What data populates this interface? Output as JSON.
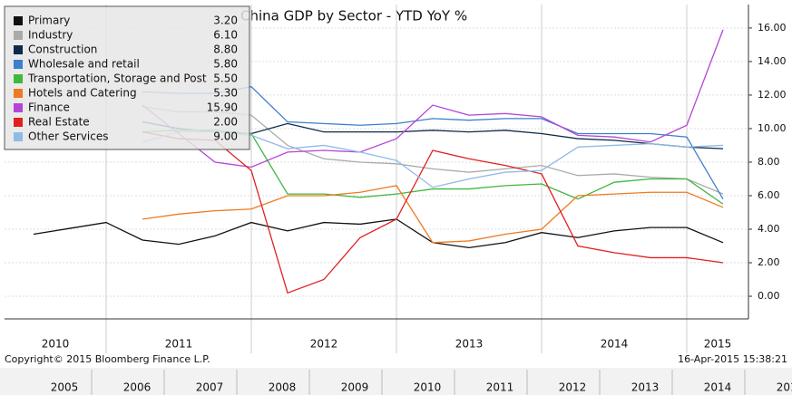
{
  "chart_data": {
    "type": "line",
    "title": "China GDP by Sector - YTD YoY %",
    "categories": [
      null,
      null,
      null,
      null,
      null,
      null,
      null,
      null,
      null,
      null,
      null,
      null,
      null,
      null,
      null,
      null,
      null,
      null,
      null,
      null
    ],
    "xbands": [
      "2010",
      "2011",
      "2012",
      "2013",
      "2014",
      "2015"
    ],
    "ylim": [
      -1.35,
      17.4
    ],
    "yticks": [
      {
        "value": 0,
        "label": "0.00"
      },
      {
        "value": 2,
        "label": "2.00"
      },
      {
        "value": 4,
        "label": "4.00"
      },
      {
        "value": 6,
        "label": "6.00"
      },
      {
        "value": 8,
        "label": "8.00"
      },
      {
        "value": 10,
        "label": "10.00"
      },
      {
        "value": 12,
        "label": "12.00"
      },
      {
        "value": 14,
        "label": "14.00"
      },
      {
        "value": 16,
        "label": "16.00"
      }
    ],
    "grid": true,
    "legend": "top-left",
    "series": [
      {
        "name": "Primary",
        "color": "#111111",
        "legend_value": "3.20",
        "values": [
          3.7,
          4.05,
          4.4,
          3.35,
          3.1,
          3.6,
          4.4,
          3.9,
          4.4,
          4.3,
          4.6,
          3.2,
          2.9,
          3.2,
          3.8,
          3.5,
          3.9,
          4.1,
          4.1,
          3.2
        ]
      },
      {
        "name": "Industry",
        "color": "#aaaaaa",
        "legend_value": "6.10",
        "values": [
          null,
          null,
          null,
          11.3,
          11.0,
          11.0,
          10.8,
          9.0,
          8.2,
          8.0,
          7.9,
          7.6,
          7.4,
          7.6,
          7.8,
          7.2,
          7.3,
          7.1,
          7.0,
          6.1
        ]
      },
      {
        "name": "Construction",
        "color": "#0d2a4a",
        "legend_value": "8.80",
        "values": [
          null,
          null,
          null,
          10.4,
          10.0,
          9.8,
          9.7,
          10.3,
          9.8,
          9.8,
          9.8,
          9.9,
          9.8,
          9.9,
          9.7,
          9.4,
          9.3,
          9.1,
          8.9,
          8.8
        ]
      },
      {
        "name": "Wholesale and retail",
        "color": "#3d7fc9",
        "legend_value": "5.80",
        "values": [
          null,
          null,
          null,
          12.2,
          12.1,
          12.1,
          12.5,
          10.4,
          10.3,
          10.2,
          10.3,
          10.6,
          10.5,
          10.6,
          10.6,
          9.7,
          9.7,
          9.7,
          9.5,
          5.8
        ]
      },
      {
        "name": "Transportation, Storage and Post",
        "color": "#3fb83f",
        "legend_value": "5.50",
        "values": [
          null,
          null,
          null,
          9.8,
          9.9,
          9.9,
          9.7,
          6.1,
          6.1,
          5.9,
          6.1,
          6.4,
          6.4,
          6.6,
          6.7,
          5.8,
          6.8,
          7.0,
          7.0,
          5.5
        ]
      },
      {
        "name": "Hotels and Catering",
        "color": "#ee7a22",
        "legend_value": "5.30",
        "values": [
          null,
          null,
          null,
          4.6,
          4.9,
          5.1,
          5.2,
          6.0,
          6.0,
          6.2,
          6.6,
          3.2,
          3.3,
          3.7,
          4.0,
          6.0,
          6.1,
          6.2,
          6.2,
          5.3
        ]
      },
      {
        "name": "Finance",
        "color": "#b545d6",
        "legend_value": "15.90",
        "values": [
          null,
          null,
          null,
          11.4,
          9.7,
          8.0,
          7.7,
          8.6,
          8.7,
          8.6,
          9.4,
          11.4,
          10.8,
          10.9,
          10.7,
          9.6,
          9.5,
          9.2,
          10.2,
          15.9
        ]
      },
      {
        "name": "Real Estate",
        "color": "#e02020",
        "legend_value": "2.00",
        "values": [
          null,
          null,
          null,
          9.8,
          9.4,
          9.3,
          7.5,
          0.2,
          1.0,
          3.5,
          4.6,
          8.7,
          8.2,
          7.8,
          7.3,
          3.0,
          2.6,
          2.3,
          2.3,
          2.0
        ]
      },
      {
        "name": "Other Services",
        "color": "#8fbbe8",
        "legend_value": "9.00",
        "values": [
          null,
          null,
          null,
          9.2,
          9.8,
          9.8,
          9.6,
          8.8,
          9.0,
          8.6,
          8.1,
          6.5,
          7.0,
          7.4,
          7.5,
          8.9,
          9.0,
          9.1,
          8.9,
          9.0
        ]
      }
    ],
    "copyright": "Copyright© 2015 Bloomberg Finance L.P.",
    "timestamp": "16-Apr-2015 15:38:21",
    "timeline": [
      "2005",
      "2006",
      "2007",
      "2008",
      "2009",
      "2010",
      "2011",
      "2012",
      "2013",
      "2014",
      "2015"
    ]
  }
}
